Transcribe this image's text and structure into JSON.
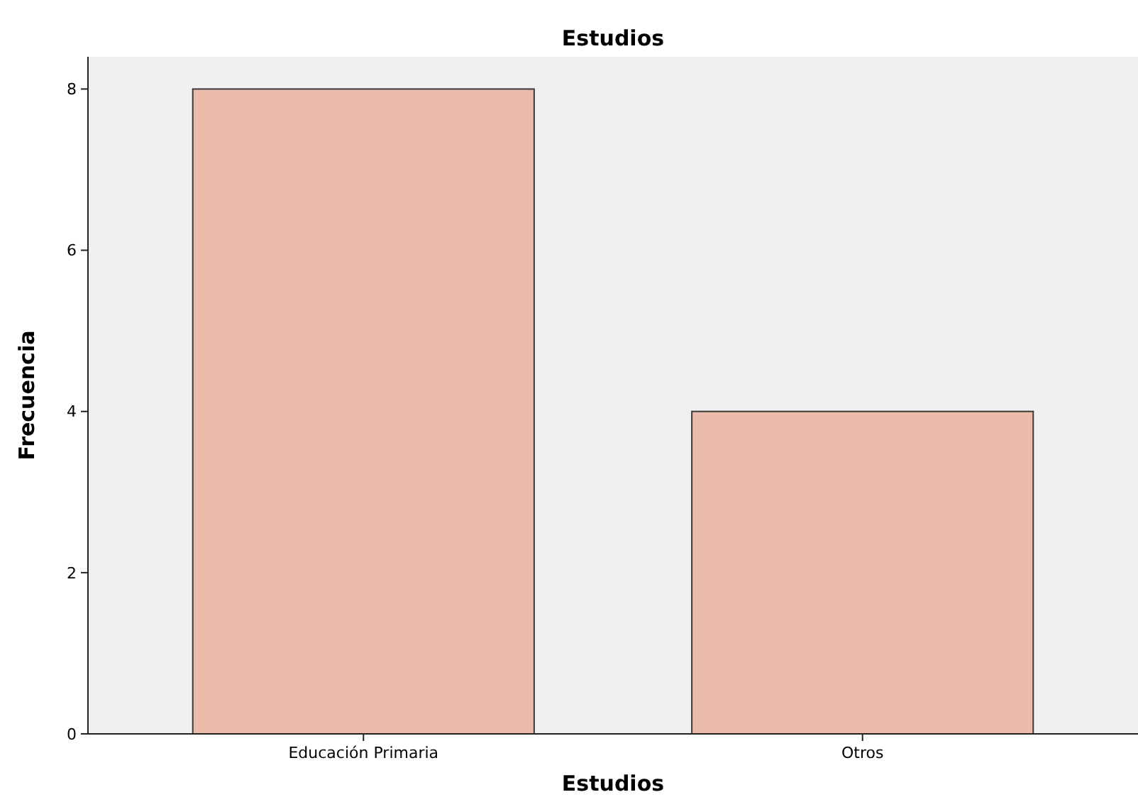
{
  "chart_data": {
    "type": "bar",
    "title": "Estudios",
    "xlabel": "Estudios",
    "ylabel": "Frecuencia",
    "categories": [
      "Educación Primaria",
      "Otros"
    ],
    "values": [
      8,
      4
    ],
    "color": "#ebbbab",
    "ylim": [
      0,
      8.4
    ],
    "yticks": [
      0,
      2,
      4,
      6,
      8
    ],
    "grid": false
  }
}
